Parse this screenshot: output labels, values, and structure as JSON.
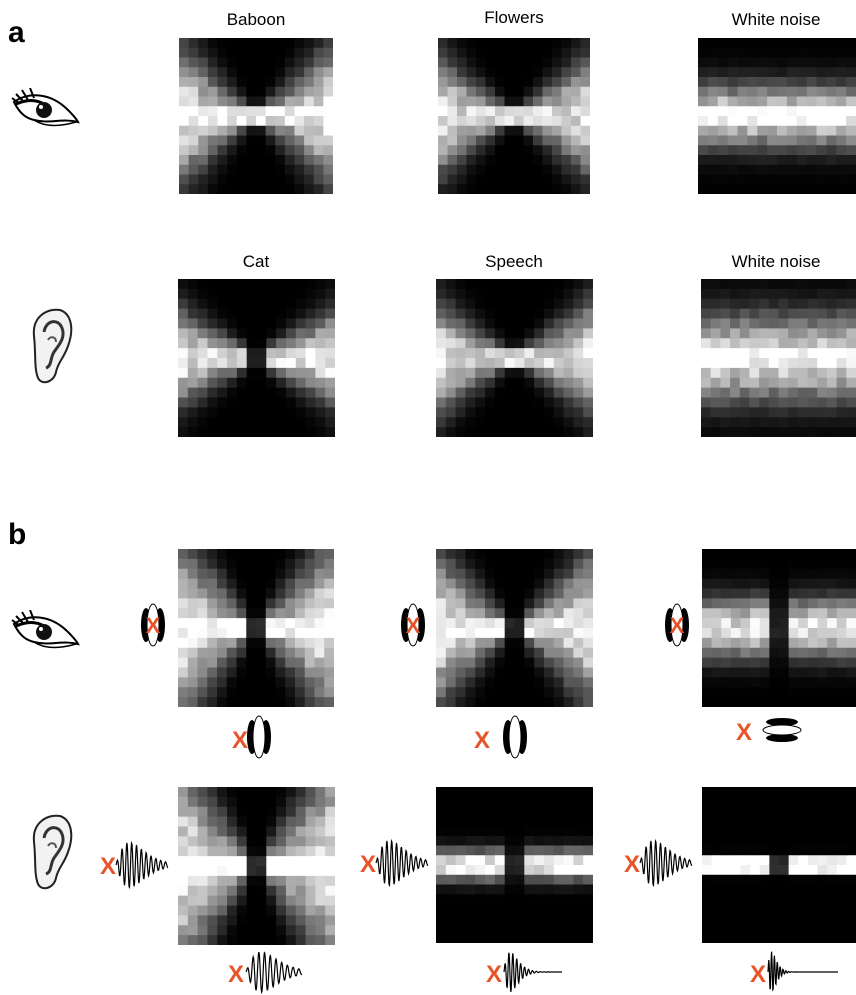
{
  "figure": {
    "panels": [
      {
        "letter": "a",
        "rows": [
          {
            "sense": "eye-icon",
            "titles": [
              "Baboon",
              "Flowers",
              "White noise"
            ]
          },
          {
            "sense": "ear-icon",
            "titles": [
              "Cat",
              "Speech",
              "White noise"
            ]
          }
        ]
      },
      {
        "letter": "b",
        "rows": [
          {
            "sense": "eye-icon",
            "stimuli": [
              "gabor-filter-icon",
              "gabor-filter-icon",
              "gabor-filter-icon"
            ]
          },
          {
            "sense": "ear-icon",
            "stimuli": [
              "gammatone-wavelet-icon",
              "gammatone-wavelet-icon",
              "gammatone-wavelet-icon"
            ]
          }
        ]
      }
    ],
    "marker_symbol": "X",
    "colors": {
      "marker": "#e8542a",
      "background": "#000000",
      "foreground": "#ffffff"
    }
  }
}
